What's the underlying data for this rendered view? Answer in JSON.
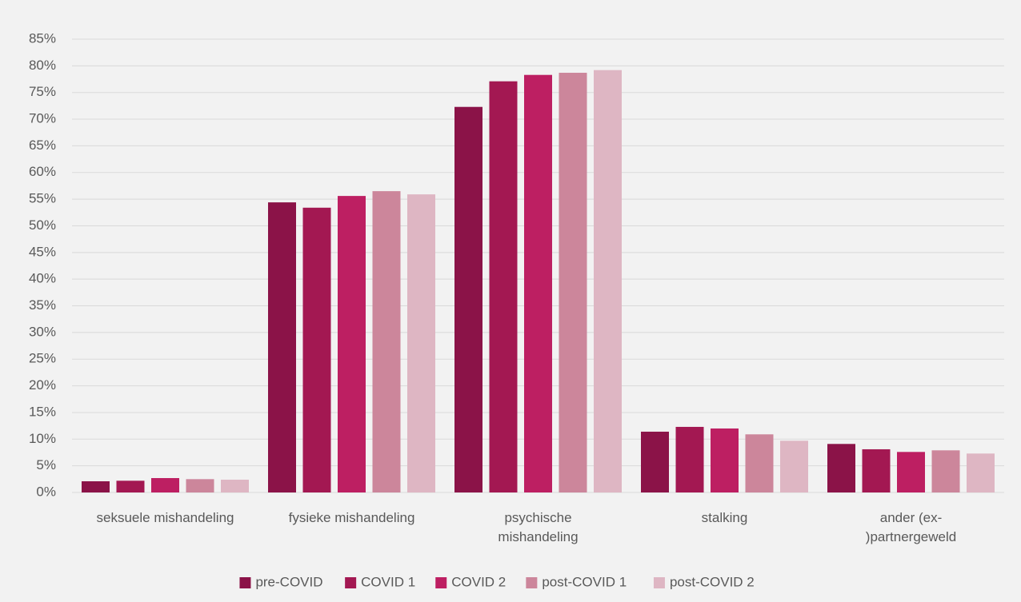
{
  "chart_data": {
    "type": "bar",
    "categories": [
      "seksuele mishandeling",
      "fysieke mishandeling",
      "psychische\nmishandeling",
      "stalking",
      "ander (ex-\n)partnergeweld"
    ],
    "series": [
      {
        "name": "pre-COVID",
        "color": "#8b1348",
        "values": [
          2.1,
          54.4,
          72.3,
          11.4,
          9.1
        ]
      },
      {
        "name": "COVID 1",
        "color": "#a31852",
        "values": [
          2.2,
          53.4,
          77.1,
          12.3,
          8.1
        ]
      },
      {
        "name": "COVID 2",
        "color": "#bd1f62",
        "values": [
          2.7,
          55.6,
          78.3,
          12.0,
          7.6
        ]
      },
      {
        "name": "post-COVID 1",
        "color": "#cc869b",
        "values": [
          2.5,
          56.5,
          78.7,
          10.9,
          7.9
        ]
      },
      {
        "name": "post-COVID 2",
        "color": "#deb6c3",
        "values": [
          2.4,
          55.9,
          79.2,
          9.7,
          7.3
        ]
      }
    ],
    "ylim": [
      0,
      85
    ],
    "yticks": [
      {
        "value": 0,
        "label": "0%"
      },
      {
        "value": 5,
        "label": "5%"
      },
      {
        "value": 10,
        "label": "10%"
      },
      {
        "value": 15,
        "label": "15%"
      },
      {
        "value": 20,
        "label": "20%"
      },
      {
        "value": 25,
        "label": "25%"
      },
      {
        "value": 30,
        "label": "30%"
      },
      {
        "value": 35,
        "label": "35%"
      },
      {
        "value": 40,
        "label": "40%"
      },
      {
        "value": 45,
        "label": "45%"
      },
      {
        "value": 50,
        "label": "50%"
      },
      {
        "value": 55,
        "label": "55%"
      },
      {
        "value": 60,
        "label": "60%"
      },
      {
        "value": 65,
        "label": "65%"
      },
      {
        "value": 70,
        "label": "70%"
      },
      {
        "value": 75,
        "label": "75%"
      },
      {
        "value": 80,
        "label": "80%"
      },
      {
        "value": 85,
        "label": "85%"
      }
    ],
    "grid": true,
    "legend": "bottom"
  }
}
